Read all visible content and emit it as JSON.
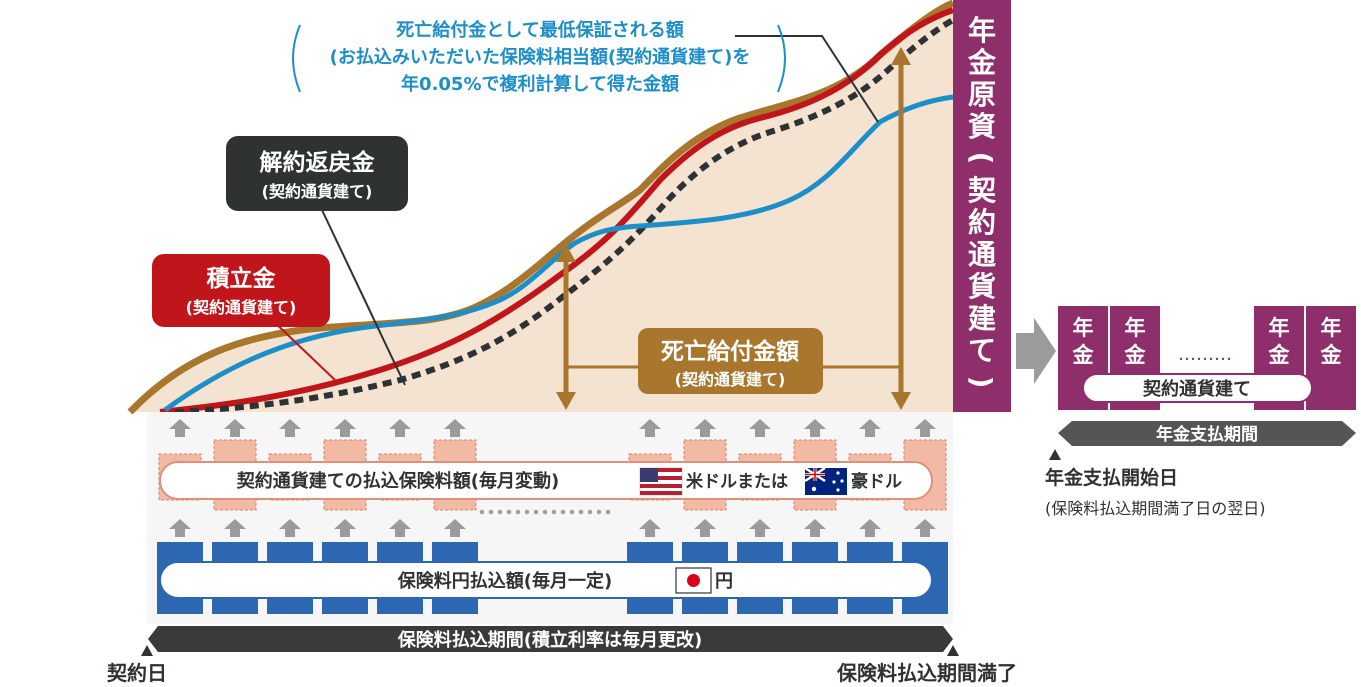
{
  "labels": {
    "death_min_line1": "死亡給付金として最低保証される額",
    "death_min_line2": "(お払込みいただいた保険料相当額(契約通貨建て)を",
    "death_min_line3": "年0.05%で複利計算して得た金額",
    "surrender_title": "解約返戻金",
    "surrender_sub": "(契約通貨建て)",
    "reserve_title": "積立金",
    "reserve_sub": "(契約通貨建て)",
    "death_benefit_title": "死亡給付金額",
    "death_benefit_sub": "(契約通貨建て)",
    "annuity_fund_chars": [
      "年",
      "金",
      "原",
      "資",
      "(",
      "契",
      "約",
      "通",
      "貨",
      "建",
      "て",
      ")"
    ],
    "annuity_block_chars": [
      "年",
      "金"
    ],
    "annuity_dots": "………",
    "annuity_currency": "契約通貨建て",
    "annuity_period": "年金支払期間",
    "annuity_start": "年金支払開始日",
    "annuity_start_sub": "(保険料払込期間満了日の翌日)",
    "premium_contract_a": "契約通貨建ての払込保険料額(毎月変動)",
    "premium_contract_usd": "米ドルまたは",
    "premium_contract_aud": "豪ドル",
    "premium_yen_a": "保険料円払込額(毎月一定)",
    "premium_yen_b": "円",
    "payment_period": "保険料払込期間(積立利率は毎月更改)",
    "contract_date": "契約日",
    "payment_end": "保険料払込期間満了"
  },
  "colors": {
    "accent_gold": "#a8762c",
    "fill_beige": "#f3e3d0",
    "reserve_red": "#c0161b",
    "death_min_blue": "#1d8ec7",
    "dark_label": "#2e3233",
    "annuity_purple": "#8e2f6b",
    "premium_salmon": "#f2b9a4",
    "yen_blue": "#2d67b1",
    "arrow_gray": "#9b9b9b",
    "bar_dark": "#3a3a3a"
  },
  "icons": [
    "flag-usa-icon",
    "flag-australia-icon",
    "flag-japan-icon",
    "up-arrow-icon",
    "right-arrow-icon",
    "triangle-marker-icon"
  ]
}
